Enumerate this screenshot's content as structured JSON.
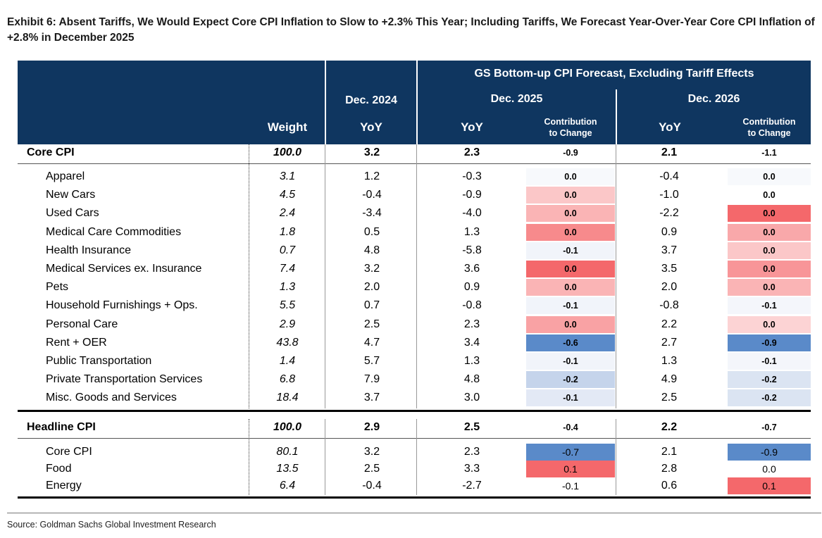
{
  "title": "Exhibit 6: Absent Tariffs, We Would Expect Core CPI Inflation to Slow to +2.3% This Year; Including Tariffs, We Forecast Year-Over-Year Core CPI Inflation of +2.8% in December 2025",
  "header": {
    "group_title": "GS Bottom-up CPI Forecast, Excluding Tariff Effects",
    "dec2024": "Dec. 2024",
    "dec2025": "Dec. 2025",
    "dec2026": "Dec. 2026",
    "weight": "Weight",
    "yoy": "YoY",
    "contrib_line1": "Contribution",
    "contrib_line2": "to Change"
  },
  "colors": {
    "header_bg": "#0f3660",
    "red_strong": "#f4686b",
    "red_medium": "#f8999b",
    "red_light": "#fbc4c6",
    "red_faint": "#fde0e1",
    "blue_strong": "#5a8ac9",
    "blue_light": "#c5d4eb",
    "blue_faint": "#e3e9f5",
    "blue_whisper": "#f1f4fa"
  },
  "core_total": {
    "label": "Core CPI",
    "weight": "100.0",
    "y24": "3.2",
    "y25": "2.3",
    "c25": "-0.9",
    "y26": "2.1",
    "c26": "-1.1"
  },
  "core_rows": [
    {
      "label": "Apparel",
      "weight": "3.1",
      "y24": "1.2",
      "y25": "-0.3",
      "c25": "0.0",
      "c25_bg": "#f7f9fc",
      "y26": "-0.4",
      "c26": "0.0",
      "c26_bg": "#f7f9fc"
    },
    {
      "label": "New Cars",
      "weight": "4.5",
      "y24": "-0.4",
      "y25": "-0.9",
      "c25": "0.0",
      "c25_bg": "#fbc7c8",
      "y26": "-1.0",
      "c26": "0.0",
      "c26_bg": "#ffffff"
    },
    {
      "label": "Used Cars",
      "weight": "2.4",
      "y24": "-3.4",
      "y25": "-4.0",
      "c25": "0.0",
      "c25_bg": "#fab4b5",
      "y26": "-2.2",
      "c26": "0.0",
      "c26_bg": "#f4686b"
    },
    {
      "label": "Medical Care Commodities",
      "weight": "1.8",
      "y24": "0.5",
      "y25": "1.3",
      "c25": "0.0",
      "c25_bg": "#f78a8c",
      "y26": "0.9",
      "c26": "0.0",
      "c26_bg": "#f9a8aa"
    },
    {
      "label": "Health Insurance",
      "weight": "0.7",
      "y24": "4.8",
      "y25": "-5.8",
      "c25": "-0.1",
      "c25_bg": "#f1f4fa",
      "y26": "3.7",
      "c26": "0.0",
      "c26_bg": "#fbc7c8"
    },
    {
      "label": "Medical Services ex. Insurance",
      "weight": "7.4",
      "y24": "3.2",
      "y25": "3.6",
      "c25": "0.0",
      "c25_bg": "#f4686b",
      "y26": "3.5",
      "c26": "0.0",
      "c26_bg": "#f89598"
    },
    {
      "label": "Pets",
      "weight": "1.3",
      "y24": "2.0",
      "y25": "0.9",
      "c25": "0.0",
      "c25_bg": "#fab4b5",
      "y26": "2.0",
      "c26": "0.0",
      "c26_bg": "#fab4b5"
    },
    {
      "label": "Household Furnishings + Ops.",
      "weight": "5.5",
      "y24": "0.7",
      "y25": "-0.8",
      "c25": "-0.1",
      "c25_bg": "#f1f4fa",
      "y26": "-0.8",
      "c26": "-0.1",
      "c26_bg": "#f4f6fb"
    },
    {
      "label": "Personal Care",
      "weight": "2.9",
      "y24": "2.5",
      "y25": "2.3",
      "c25": "0.0",
      "c25_bg": "#f9a2a4",
      "y26": "2.2",
      "c26": "0.0",
      "c26_bg": "#fcd3d4"
    },
    {
      "label": "Rent + OER",
      "weight": "43.8",
      "y24": "4.7",
      "y25": "3.4",
      "c25": "-0.6",
      "c25_bg": "#5a8ac9",
      "y26": "2.7",
      "c26": "-0.9",
      "c26_bg": "#5a8ac9"
    },
    {
      "label": "Public Transportation",
      "weight": "1.4",
      "y24": "5.7",
      "y25": "1.3",
      "c25": "-0.1",
      "c25_bg": "#f1f4fa",
      "y26": "1.3",
      "c26": "-0.1",
      "c26_bg": "#f4f6fb"
    },
    {
      "label": "Private Transportation Services",
      "weight": "6.8",
      "y24": "7.9",
      "y25": "4.8",
      "c25": "-0.2",
      "c25_bg": "#c5d4eb",
      "y26": "4.9",
      "c26": "-0.2",
      "c26_bg": "#dbe4f2"
    },
    {
      "label": "Misc. Goods and Services",
      "weight": "18.4",
      "y24": "3.7",
      "y25": "3.0",
      "c25": "-0.1",
      "c25_bg": "#e3e9f5",
      "y26": "2.5",
      "c26": "-0.2",
      "c26_bg": "#dbe4f2"
    }
  ],
  "headline_total": {
    "label": "Headline CPI",
    "weight": "100.0",
    "y24": "2.9",
    "y25": "2.5",
    "c25": "-0.4",
    "y26": "2.2",
    "c26": "-0.7"
  },
  "headline_rows": [
    {
      "label": "Core CPI",
      "weight": "80.1",
      "y24": "3.2",
      "y25": "2.3",
      "c25": "-0.7",
      "c25_bg": "#5a8ac9",
      "y26": "2.1",
      "c26": "-0.9",
      "c26_bg": "#5a8ac9"
    },
    {
      "label": "Food",
      "weight": "13.5",
      "y24": "2.5",
      "y25": "3.3",
      "c25": "0.1",
      "c25_bg": "#f4686b",
      "y26": "2.8",
      "c26": "0.0",
      "c26_bg": "#ffffff"
    },
    {
      "label": "Energy",
      "weight": "6.4",
      "y24": "-0.4",
      "y25": "-2.7",
      "c25": "-0.1",
      "c25_bg": "#ffffff",
      "y26": "0.6",
      "c26": "0.1",
      "c26_bg": "#f4686b"
    }
  ],
  "source": "Source: Goldman Sachs Global Investment Research"
}
